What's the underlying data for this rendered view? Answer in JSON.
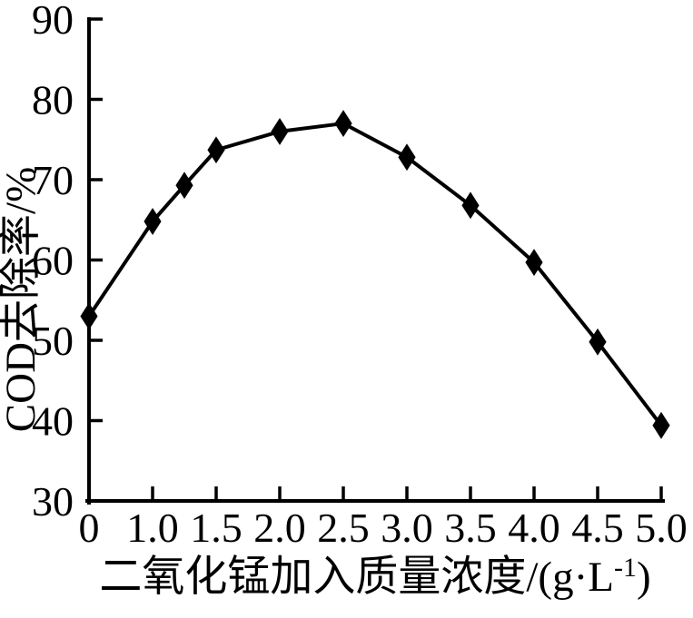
{
  "chart_data": {
    "type": "line",
    "title": "",
    "xlabel": "二氧化锰加入质量浓度/(g·L⁻¹)",
    "xlabel_parts": {
      "main": "二氧化锰加入质量浓度/(g·L",
      "sup": "-1",
      "close": ")"
    },
    "ylabel": "COD去除率/%",
    "x_tick_labels": [
      "0",
      "1.0",
      "1.5",
      "2.0",
      "2.5",
      "3.0",
      "3.5",
      "4.0",
      "4.5",
      "5.0"
    ],
    "y_tick_labels": [
      "30",
      "40",
      "50",
      "60",
      "70",
      "80",
      "90"
    ],
    "ylim": [
      30,
      90
    ],
    "y_tick_step": 10,
    "x_scale_note": "ticks evenly spaced; interval 0 to 1.0 spans one tick gap, then 0.5 per tick gap",
    "grid": false,
    "legend": null,
    "background": "#ffffff",
    "axis_color": "#000000",
    "series": [
      {
        "name": "COD removal rate",
        "marker": "diamond",
        "color": "#000000",
        "points": [
          {
            "x": 0,
            "y": 53.0
          },
          {
            "x": 1.0,
            "y": 64.8
          },
          {
            "x": 1.25,
            "y": 69.3
          },
          {
            "x": 1.5,
            "y": 73.7
          },
          {
            "x": 2.0,
            "y": 76.0
          },
          {
            "x": 2.5,
            "y": 77.0
          },
          {
            "x": 3.0,
            "y": 72.8
          },
          {
            "x": 3.5,
            "y": 66.8
          },
          {
            "x": 4.0,
            "y": 59.7
          },
          {
            "x": 4.5,
            "y": 49.8
          },
          {
            "x": 5.0,
            "y": 39.4
          }
        ]
      }
    ]
  }
}
